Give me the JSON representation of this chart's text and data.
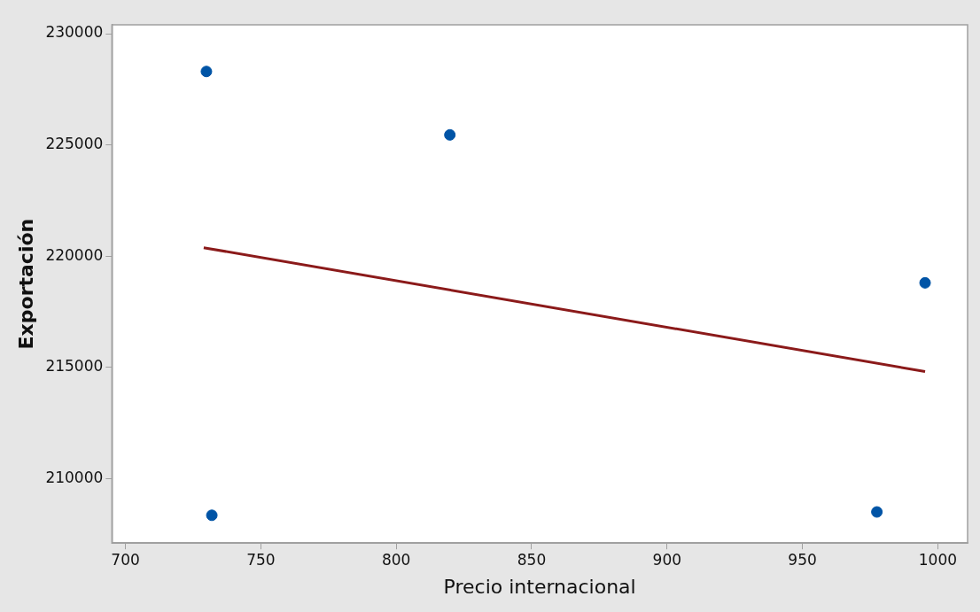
{
  "chart_data": {
    "type": "scatter",
    "xlabel": "Precio internacional",
    "ylabel": "Exportación",
    "xlim": [
      695,
      1011
    ],
    "xticks": [
      700,
      750,
      800,
      850,
      900,
      950,
      1000
    ],
    "ylim": [
      207100,
      230400
    ],
    "yticks": [
      210000,
      215000,
      220000,
      225000,
      230000
    ],
    "grid": false,
    "legend": false,
    "marker": "circle",
    "series": [
      {
        "color": "#0054a6",
        "x": [
          729.9,
          731.9,
          819.8,
          977.5,
          995.3
        ],
        "values": [
          228300,
          208350,
          225450,
          208500,
          218800
        ]
      },
      {
        "type": "line",
        "color": "#8b1a1a",
        "marker": "none",
        "line_style": "solid",
        "x": [
          728.9,
          995.3
        ],
        "values": [
          220380,
          214810
        ]
      }
    ]
  }
}
